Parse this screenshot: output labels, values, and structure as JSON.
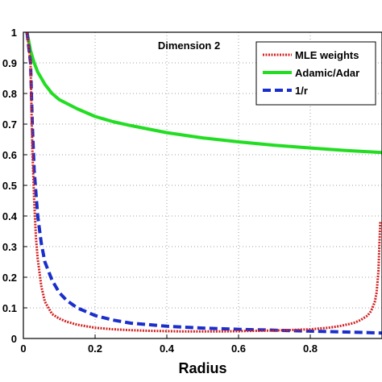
{
  "chart_data": {
    "type": "line",
    "title": "",
    "annotation": "Dimension 2",
    "xlabel": "Radius",
    "ylabel": "",
    "xlim": [
      0,
      1
    ],
    "ylim": [
      0,
      1
    ],
    "x_ticks": [
      0,
      0.2,
      0.4,
      0.6,
      0.8
    ],
    "x_tick_labels": [
      "0",
      "0.2",
      "0.4",
      "0.6",
      "0.8"
    ],
    "y_ticks": [
      0,
      0.1,
      0.2,
      0.3,
      0.4,
      0.5,
      0.6,
      0.7,
      0.8,
      0.9,
      1
    ],
    "y_tick_labels": [
      "0",
      "0.1",
      "0.2",
      "0.3",
      "0.4",
      "0.5",
      "0.6",
      "0.7",
      "0.8",
      "0.9",
      "1"
    ],
    "grid": true,
    "grid_style": "dotted",
    "legend_position": "top-right",
    "series": [
      {
        "name": "MLE weights",
        "color": "#d42020",
        "line_style": "dotted",
        "x": [
          0.01,
          0.02,
          0.025,
          0.03,
          0.035,
          0.04,
          0.05,
          0.06,
          0.08,
          0.1,
          0.12,
          0.15,
          0.2,
          0.25,
          0.3,
          0.35,
          0.4,
          0.45,
          0.5,
          0.55,
          0.6,
          0.65,
          0.7,
          0.75,
          0.8,
          0.85,
          0.88,
          0.9,
          0.92,
          0.94,
          0.96,
          0.97,
          0.98,
          0.985,
          0.99,
          0.995
        ],
        "values": [
          1.0,
          0.9,
          0.62,
          0.45,
          0.33,
          0.26,
          0.17,
          0.12,
          0.08,
          0.065,
          0.055,
          0.045,
          0.035,
          0.03,
          0.027,
          0.025,
          0.024,
          0.023,
          0.023,
          0.023,
          0.024,
          0.025,
          0.026,
          0.028,
          0.03,
          0.035,
          0.04,
          0.045,
          0.05,
          0.06,
          0.075,
          0.09,
          0.12,
          0.15,
          0.22,
          0.38
        ]
      },
      {
        "name": "Adamic/Adar",
        "color": "#22dd22",
        "line_style": "solid",
        "x": [
          0.01,
          0.015,
          0.02,
          0.025,
          0.03,
          0.04,
          0.05,
          0.06,
          0.08,
          0.1,
          0.15,
          0.2,
          0.25,
          0.3,
          0.4,
          0.5,
          0.6,
          0.7,
          0.8,
          0.9,
          1.0
        ],
        "values": [
          1.0,
          0.97,
          0.94,
          0.92,
          0.9,
          0.87,
          0.85,
          0.83,
          0.8,
          0.78,
          0.75,
          0.725,
          0.708,
          0.695,
          0.672,
          0.655,
          0.642,
          0.631,
          0.622,
          0.614,
          0.607
        ]
      },
      {
        "name": "1/r",
        "color": "#1a2ecc",
        "line_style": "dashed",
        "x": [
          0.01,
          0.02,
          0.025,
          0.03,
          0.04,
          0.05,
          0.06,
          0.08,
          0.1,
          0.12,
          0.15,
          0.2,
          0.25,
          0.3,
          0.4,
          0.5,
          0.6,
          0.7,
          0.8,
          0.9,
          1.0
        ],
        "values": [
          1.0,
          0.9,
          0.7,
          0.55,
          0.4,
          0.31,
          0.25,
          0.19,
          0.15,
          0.125,
          0.1,
          0.075,
          0.06,
          0.05,
          0.04,
          0.034,
          0.03,
          0.027,
          0.024,
          0.021,
          0.018
        ]
      }
    ]
  }
}
